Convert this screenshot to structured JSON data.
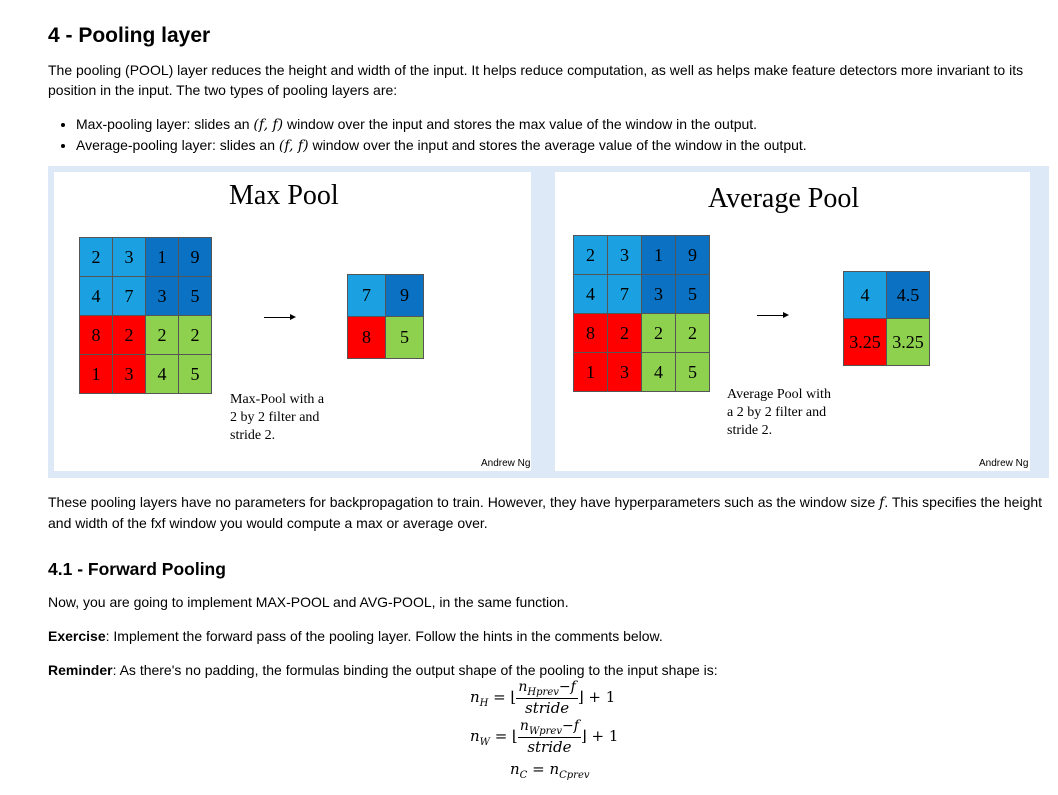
{
  "heading": "4 - Pooling layer",
  "intro": "The pooling (POOL) layer reduces the height and width of the input. It helps reduce computation, as well as helps make feature detectors more invariant to its position in the input. The two types of pooling layers are:",
  "bullets": [
    {
      "pre": "Max-pooling layer: slides an ",
      "math": "(f, f)",
      "post": " window over the input and stores the max value of the window in the output."
    },
    {
      "pre": "Average-pooling layer: slides an ",
      "math": "(f, f)",
      "post": " window over the input and stores the average value of the window in the output."
    }
  ],
  "figure": {
    "max": {
      "title": "Max Pool",
      "input": [
        [
          "2",
          "3",
          "1",
          "9"
        ],
        [
          "4",
          "7",
          "3",
          "5"
        ],
        [
          "8",
          "2",
          "2",
          "2"
        ],
        [
          "1",
          "3",
          "4",
          "5"
        ]
      ],
      "output": [
        [
          "7",
          "9"
        ],
        [
          "8",
          "5"
        ]
      ],
      "caption": [
        "Max-Pool with a",
        "2 by 2 filter and",
        "stride 2."
      ],
      "credit": "Andrew Ng"
    },
    "avg": {
      "title": "Average Pool",
      "input": [
        [
          "2",
          "3",
          "1",
          "9"
        ],
        [
          "4",
          "7",
          "3",
          "5"
        ],
        [
          "8",
          "2",
          "2",
          "2"
        ],
        [
          "1",
          "3",
          "4",
          "5"
        ]
      ],
      "output": [
        [
          "4",
          "4.5"
        ],
        [
          "3.25",
          "3.25"
        ]
      ],
      "caption": [
        "Average Pool with",
        "a 2 by 2 filter and",
        "stride 2."
      ],
      "credit": "Andrew Ng"
    },
    "colors": {
      "light_blue": "#1ba1e2",
      "dark_blue": "#0a71c3",
      "red": "#ff0000",
      "green": "#8ed14f"
    }
  },
  "para2": {
    "pre": "These pooling layers have no parameters for backpropagation to train. However, they have hyperparameters such as the window size ",
    "math": "f",
    "post": ". This specifies the height and width of the fxf window you would compute a max or average over."
  },
  "subheading": "4.1 - Forward Pooling",
  "para3": "Now, you are going to implement MAX-POOL and AVG-POOL, in the same function.",
  "exercise": {
    "label": "Exercise",
    "text": ": Implement the forward pass of the pooling layer. Follow the hints in the comments below."
  },
  "reminder": {
    "label": "Reminder",
    "text": ": As there's no padding, the formulas binding the output shape of the pooling to the input shape is:"
  },
  "equations": {
    "nH": {
      "lhs": "n",
      "lhs_sub": "H",
      "num": "n",
      "num_sub": "H",
      "num_subsub": "prev",
      "minus": "−",
      "f": "f",
      "den": "stride",
      "tail": "⌋ + 1"
    },
    "nW": {
      "lhs": "n",
      "lhs_sub": "W",
      "num": "n",
      "num_sub": "W",
      "num_subsub": "prev",
      "minus": "−",
      "f": "f",
      "den": "stride",
      "tail": "⌋ + 1"
    },
    "nC": {
      "lhs": "n",
      "lhs_sub": "C",
      "rhs": "n",
      "rhs_sub": "C",
      "rhs_subsub": "prev"
    }
  }
}
